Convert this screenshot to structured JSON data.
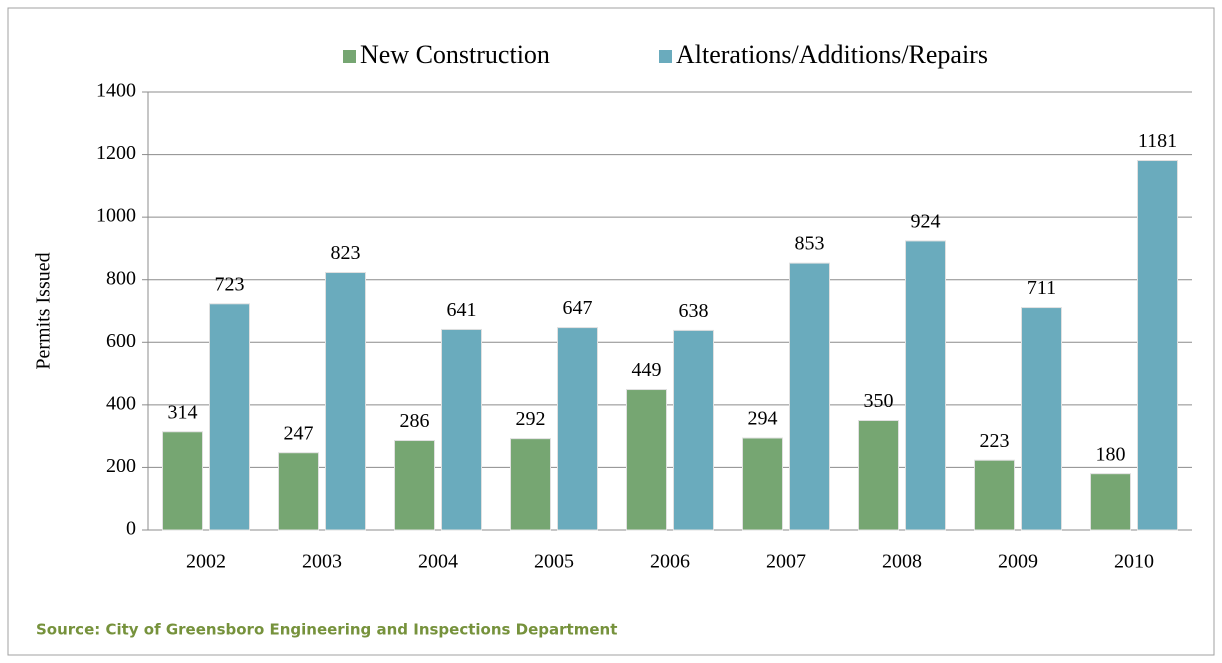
{
  "chart_data": {
    "type": "bar",
    "y_label": "Permits Issued",
    "source": "Source: City of Greensboro Engineering and Inspections Department",
    "categories": [
      "2002",
      "2003",
      "2004",
      "2005",
      "2006",
      "2007",
      "2008",
      "2009",
      "2010"
    ],
    "series": [
      {
        "name": "New Construction",
        "color": "#76a672",
        "values": [
          314,
          247,
          286,
          292,
          449,
          294,
          350,
          223,
          180
        ]
      },
      {
        "name": "Alterations/Additions/Repairs",
        "color": "#6aabbd",
        "values": [
          723,
          823,
          641,
          647,
          638,
          853,
          924,
          711,
          1181
        ]
      }
    ],
    "ylim": [
      0,
      1400
    ],
    "yticks": [
      0,
      200,
      400,
      600,
      800,
      1000,
      1200,
      1400
    ],
    "grid": true,
    "legend": "top"
  }
}
